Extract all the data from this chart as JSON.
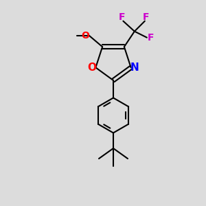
{
  "background_color": "#dcdcdc",
  "bond_color": "#000000",
  "o_color": "#ff0000",
  "n_color": "#0000ff",
  "f_color": "#cc00cc",
  "line_width": 1.5,
  "figsize": [
    3.0,
    3.0
  ],
  "dpi": 100,
  "xlim": [
    0,
    10
  ],
  "ylim": [
    0,
    10
  ]
}
